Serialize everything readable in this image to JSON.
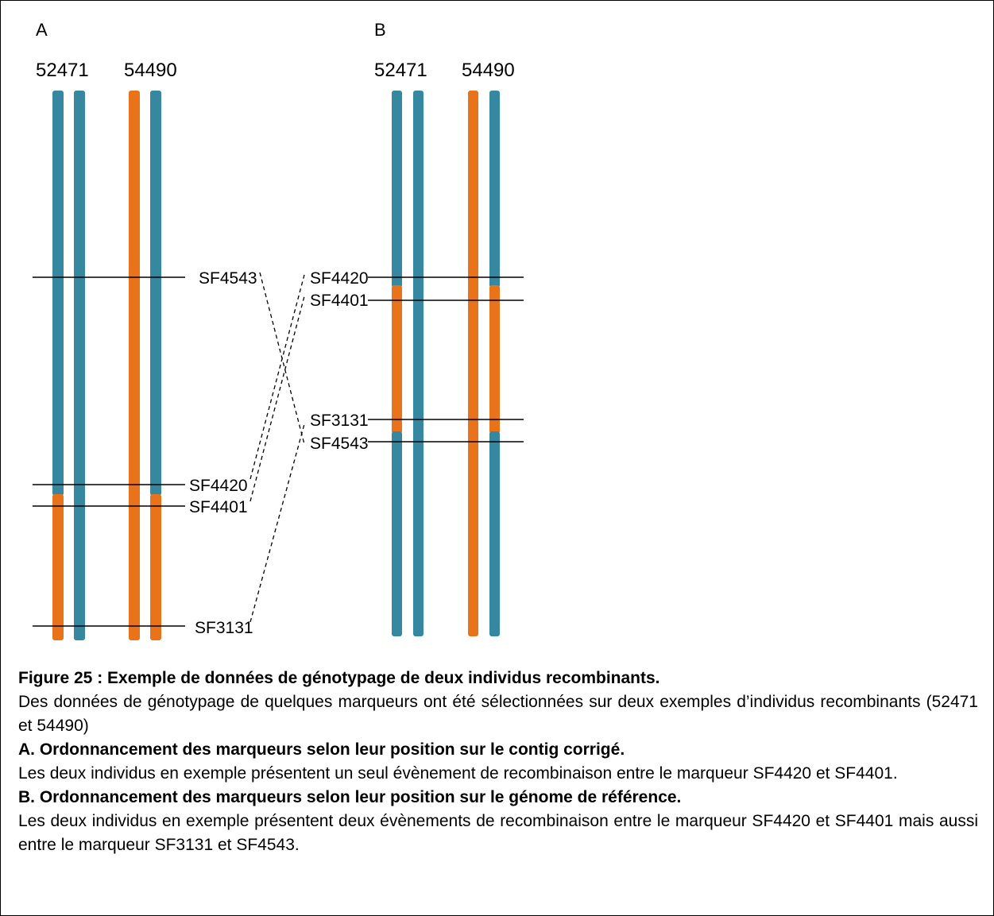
{
  "colors": {
    "blue": "#35889f",
    "orange": "#e8731a",
    "line": "#000000"
  },
  "panels": [
    {
      "label": "A",
      "individuals": [
        "52471",
        "54490"
      ],
      "markers": [
        "SF4543",
        "SF4420",
        "SF4401",
        "SF3131"
      ]
    },
    {
      "label": "B",
      "individuals": [
        "52471",
        "54490"
      ],
      "markers": [
        "SF4420",
        "SF4401",
        "SF3131",
        "SF4543"
      ]
    }
  ],
  "caption": {
    "title": "Figure 25 : Exemple de données de génotypage de deux individus recombinants.",
    "text1": "Des données de génotypage de quelques marqueurs ont été sélectionnées sur deux exemples d’individus recombinants (52471 et 54490)",
    "heading_a": "A. Ordonnancement des marqueurs selon leur position sur le contig corrigé.",
    "text_a": "Les deux individus en exemple présentent un seul évènement de recombinaison entre le marqueur SF4420 et SF4401.",
    "heading_b": "B. Ordonnancement des marqueurs selon leur position sur le génome de référence.",
    "text_b": "Les deux individus en exemple présentent deux évènements de recombinaison entre le marqueur SF4420 et SF4401 mais aussi entre le marqueur SF3131 et SF4543."
  }
}
